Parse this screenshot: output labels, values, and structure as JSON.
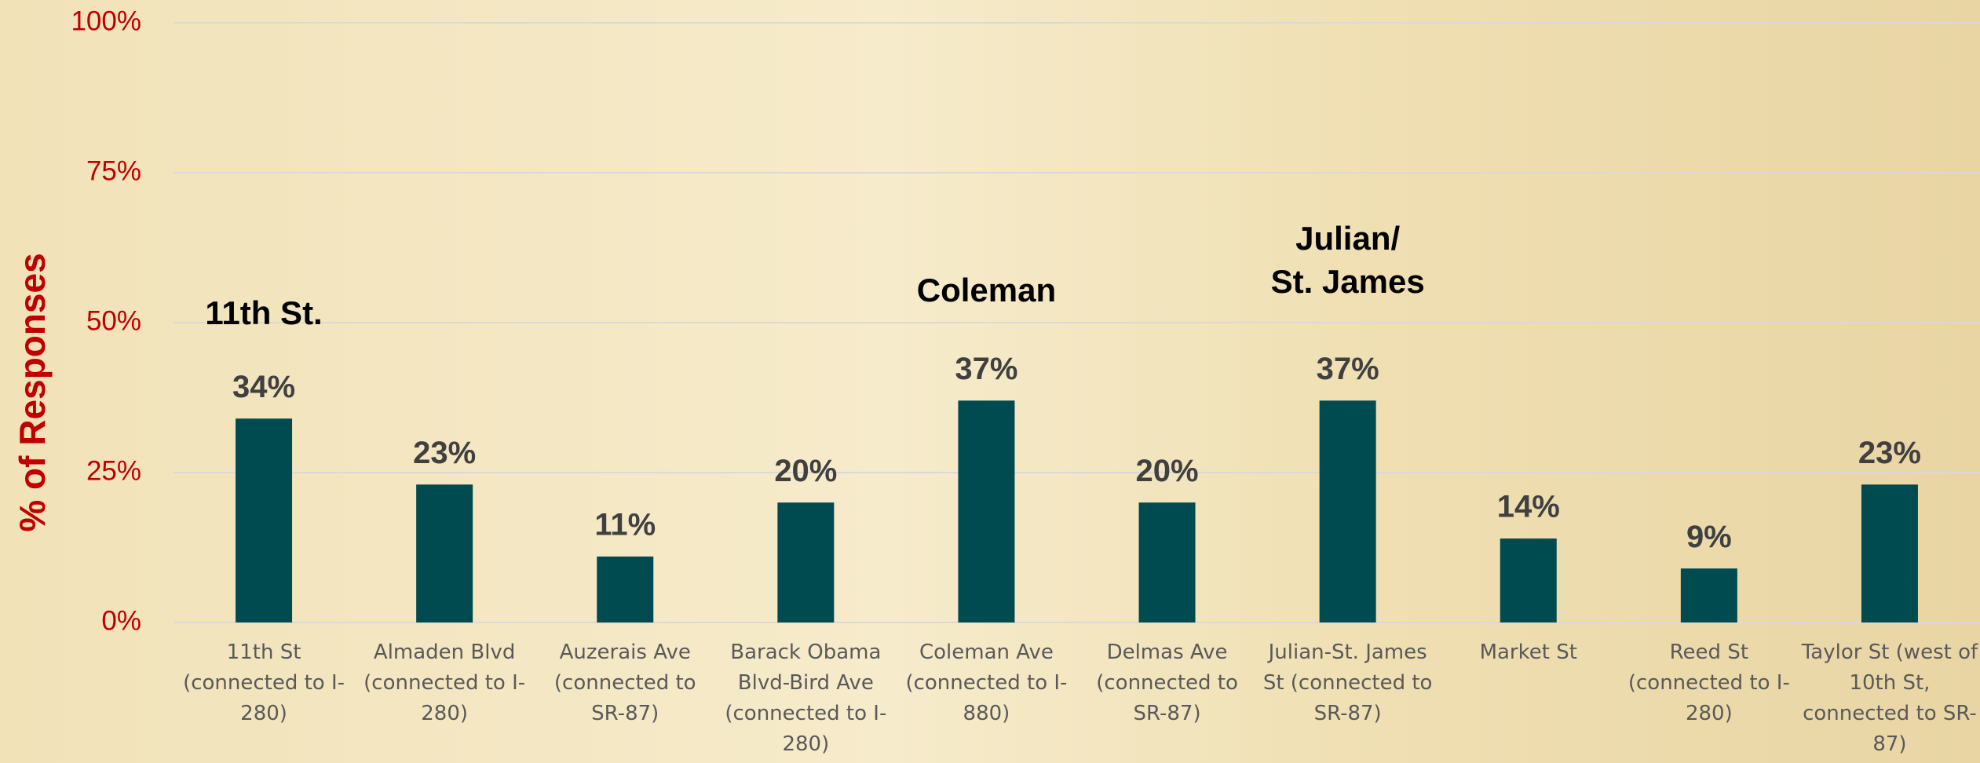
{
  "chart_data": {
    "type": "bar",
    "y_axis_label": "% of Responses",
    "categories": [
      "11th St (connected to I-280)",
      "Almaden Blvd (connected to I-280)",
      "Auzerais Ave (connected to SR-87)",
      "Barack Obama Blvd-Bird Ave (connected to I-280)",
      "Coleman Ave (connected to I-880)",
      "Delmas Ave (connected to SR-87)",
      "Julian-St. James St (connected to SR-87)",
      "Market St",
      "Reed St (connected to I-280)",
      "Taylor St (west of 10th St, connected to SR-87)"
    ],
    "values": [
      34,
      23,
      11,
      20,
      37,
      20,
      37,
      14,
      9,
      23
    ],
    "value_labels": [
      "34%",
      "23%",
      "11%",
      "20%",
      "37%",
      "20%",
      "37%",
      "14%",
      "9%",
      "23%"
    ],
    "color": "#004b50",
    "ylim": [
      0,
      100
    ],
    "yticks": [
      {
        "value": 0,
        "label": "0%"
      },
      {
        "value": 25,
        "label": "25%"
      },
      {
        "value": 50,
        "label": "50%"
      },
      {
        "value": 75,
        "label": "75%"
      },
      {
        "value": 100,
        "label": "100%"
      }
    ],
    "grid": true,
    "annotations": [
      {
        "lines": [
          "11th St."
        ]
      },
      {
        "lines": [
          "Coleman"
        ]
      },
      {
        "lines": [
          "Julian/",
          "St. James"
        ]
      }
    ]
  }
}
